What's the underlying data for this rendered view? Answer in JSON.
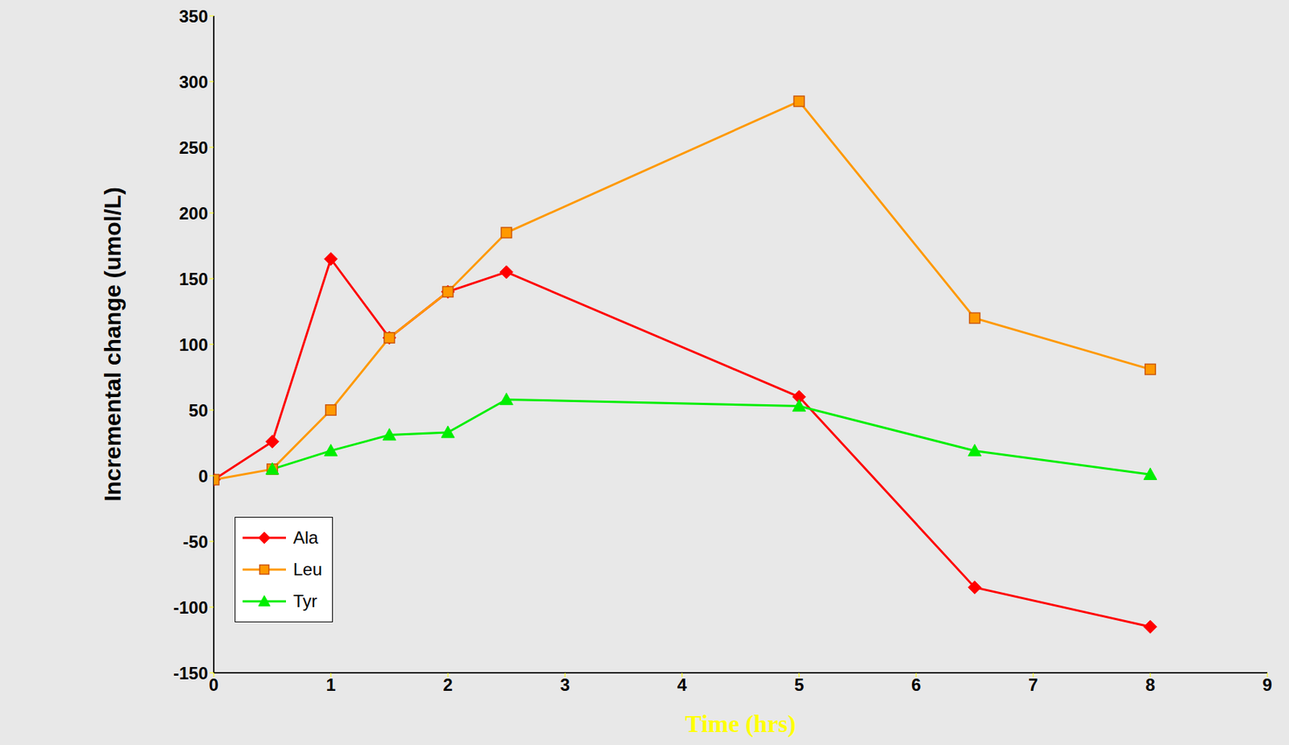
{
  "chart_data": {
    "type": "line",
    "x_label": "Time (hrs)",
    "y_label": "Incremental change (umol/L)",
    "x": [
      0,
      0.5,
      1,
      1.5,
      2,
      2.5,
      5,
      6.5,
      8
    ],
    "series": [
      {
        "name": "Ala",
        "color": "#ff0000",
        "marker": "diamond",
        "values": [
          -3,
          26,
          165,
          105,
          140,
          155,
          60,
          -85,
          -115
        ]
      },
      {
        "name": "Leu",
        "color": "#ff9900",
        "marker": "square",
        "values": [
          -3,
          5,
          50,
          105,
          140,
          185,
          285,
          120,
          81
        ]
      },
      {
        "name": "Tyr",
        "color": "#00ee00",
        "marker": "triangle",
        "values": [
          null,
          5,
          19,
          31,
          33,
          58,
          53,
          19,
          1
        ]
      }
    ],
    "xlim": [
      0,
      9
    ],
    "xticks": [
      0,
      1,
      2,
      3,
      4,
      5,
      6,
      7,
      8,
      9
    ],
    "ylim": [
      -150,
      350
    ],
    "yticks": [
      -150,
      -100,
      -50,
      0,
      50,
      100,
      150,
      200,
      250,
      300,
      350
    ],
    "grid": false,
    "legend": "lower left"
  }
}
